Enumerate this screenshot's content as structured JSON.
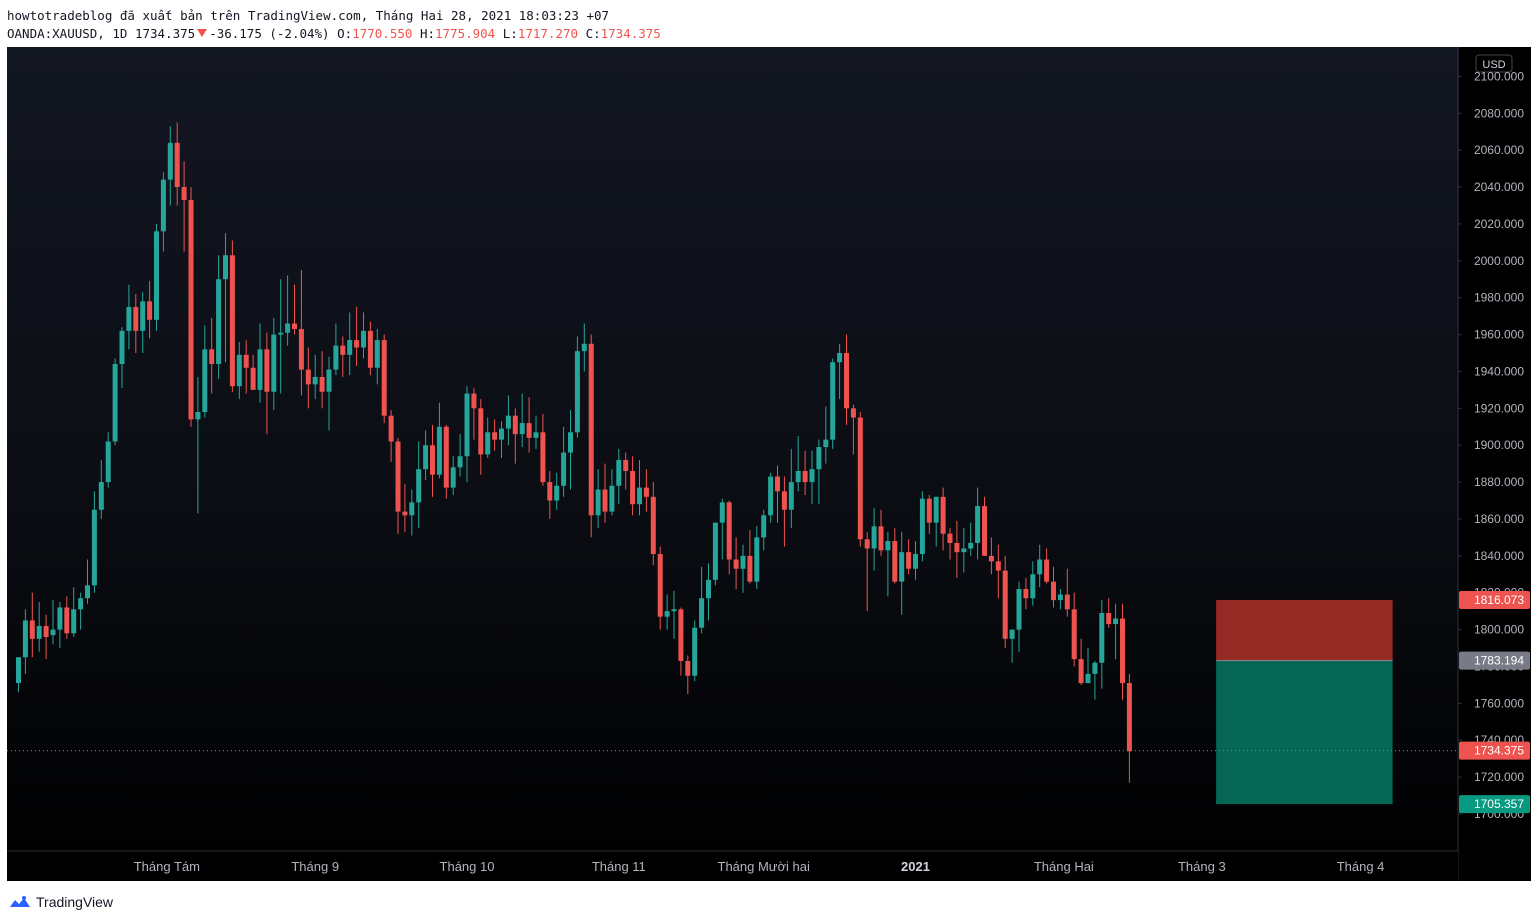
{
  "header": {
    "line1": "howtotradeblog đã xuất bản trên TradingView.com, Tháng Hai 28, 2021 18:03:23 +07",
    "symbol": "OANDA:XAUUSD, 1D",
    "last": "1734.375",
    "change": "-36.175 (-2.04%)",
    "o_label": "O:",
    "o_val": "1770.550",
    "h_label": "H:",
    "h_val": "1775.904",
    "l_label": "L:",
    "l_val": "1717.270",
    "c_label": "C:",
    "c_val": "1734.375"
  },
  "footer": {
    "brand": "TradingView"
  },
  "colors": {
    "up": "#26a69a",
    "down": "#ef5350",
    "background_top": "#131722",
    "background_bottom": "#000000",
    "stop_zone": "#952a25",
    "target_zone": "#056656",
    "last_price_tag": "#ef5350",
    "entry_tag": "#787b86",
    "target_tag": "#089981"
  },
  "chart_data": {
    "type": "candlestick",
    "symbol": "OANDA:XAUUSD",
    "interval": "1D",
    "currency": "USD",
    "ylim": [
      1690,
      2110
    ],
    "y_ticks": [
      "1700.000",
      "1720.000",
      "1740.000",
      "1760.000",
      "1780.000",
      "1800.000",
      "1820.000",
      "1840.000",
      "1860.000",
      "1880.000",
      "1900.000",
      "1920.000",
      "1940.000",
      "1960.000",
      "1980.000",
      "2000.000",
      "2020.000",
      "2040.000",
      "2060.000",
      "2080.000",
      "2100.000"
    ],
    "x_tick_labels": [
      "Tháng Tám",
      "Tháng 9",
      "Tháng 10",
      "Tháng 11",
      "Tháng Mười hai",
      "2021",
      "Tháng Hai",
      "Tháng 3",
      "Tháng 4"
    ],
    "x_tick_bold": [
      false,
      false,
      false,
      false,
      false,
      true,
      false,
      false,
      false
    ],
    "x_tick_bar_index": [
      21.5,
      43,
      65,
      87,
      108,
      130,
      151.5,
      171.5,
      194.5
    ],
    "ohlc": [
      [
        1771,
        1785,
        1766,
        1785
      ],
      [
        1785,
        1811,
        1776,
        1805
      ],
      [
        1805,
        1820,
        1785,
        1795
      ],
      [
        1795,
        1815,
        1788,
        1802
      ],
      [
        1802,
        1808,
        1784,
        1796
      ],
      [
        1797,
        1816,
        1792,
        1800
      ],
      [
        1800,
        1815,
        1790,
        1812
      ],
      [
        1812,
        1818,
        1795,
        1798
      ],
      [
        1798,
        1823,
        1796,
        1811
      ],
      [
        1811,
        1820,
        1800,
        1817
      ],
      [
        1817,
        1838,
        1814,
        1824
      ],
      [
        1824,
        1875,
        1820,
        1865
      ],
      [
        1865,
        1892,
        1860,
        1880
      ],
      [
        1880,
        1907,
        1877,
        1902
      ],
      [
        1902,
        1947,
        1900,
        1944
      ],
      [
        1944,
        1964,
        1931,
        1962
      ],
      [
        1962,
        1987,
        1952,
        1975
      ],
      [
        1975,
        1982,
        1950,
        1962
      ],
      [
        1962,
        1983,
        1950,
        1978
      ],
      [
        1978,
        1989,
        1958,
        1968
      ],
      [
        1968,
        2020,
        1962,
        2016
      ],
      [
        2016,
        2048,
        2005,
        2044
      ],
      [
        2044,
        2073,
        2030,
        2064
      ],
      [
        2064,
        2075,
        2030,
        2040
      ],
      [
        2040,
        2054,
        2005,
        2033
      ],
      [
        2033,
        2040,
        1910,
        1914
      ],
      [
        1914,
        1937,
        1863,
        1918
      ],
      [
        1918,
        1965,
        1915,
        1952
      ],
      [
        1952,
        1969,
        1928,
        1944
      ],
      [
        1944,
        2003,
        1936,
        1990
      ],
      [
        1990,
        2015,
        1945,
        2003
      ],
      [
        2003,
        2011,
        1929,
        1932
      ],
      [
        1932,
        1956,
        1925,
        1949
      ],
      [
        1949,
        1957,
        1928,
        1942
      ],
      [
        1942,
        1949,
        1930,
        1930
      ],
      [
        1930,
        1966,
        1923,
        1952
      ],
      [
        1952,
        1961,
        1906,
        1929
      ],
      [
        1929,
        1969,
        1919,
        1960
      ],
      [
        1960,
        1990,
        1928,
        1961
      ],
      [
        1961,
        1992,
        1954,
        1966
      ],
      [
        1966,
        1987,
        1960,
        1963
      ],
      [
        1963,
        1995,
        1927,
        1941
      ],
      [
        1941,
        1953,
        1920,
        1933
      ],
      [
        1933,
        1949,
        1925,
        1937
      ],
      [
        1937,
        1951,
        1920,
        1929
      ],
      [
        1929,
        1948,
        1908,
        1941
      ],
      [
        1941,
        1966,
        1938,
        1954
      ],
      [
        1954,
        1959,
        1937,
        1949
      ],
      [
        1949,
        1972,
        1938,
        1957
      ],
      [
        1957,
        1975,
        1943,
        1953
      ],
      [
        1953,
        1972,
        1947,
        1962
      ],
      [
        1962,
        1967,
        1938,
        1942
      ],
      [
        1942,
        1963,
        1933,
        1957
      ],
      [
        1957,
        1960,
        1912,
        1916
      ],
      [
        1916,
        1919,
        1891,
        1902
      ],
      [
        1902,
        1904,
        1852,
        1864
      ],
      [
        1864,
        1879,
        1853,
        1862
      ],
      [
        1862,
        1876,
        1851,
        1869
      ],
      [
        1869,
        1902,
        1855,
        1887
      ],
      [
        1887,
        1908,
        1881,
        1900
      ],
      [
        1900,
        1911,
        1872,
        1884
      ],
      [
        1884,
        1923,
        1882,
        1910
      ],
      [
        1910,
        1911,
        1871,
        1877
      ],
      [
        1877,
        1894,
        1873,
        1888
      ],
      [
        1888,
        1906,
        1883,
        1894
      ],
      [
        1894,
        1932,
        1880,
        1928
      ],
      [
        1928,
        1931,
        1903,
        1920
      ],
      [
        1920,
        1925,
        1884,
        1895
      ],
      [
        1895,
        1915,
        1893,
        1907
      ],
      [
        1907,
        1914,
        1897,
        1903
      ],
      [
        1903,
        1913,
        1893,
        1909
      ],
      [
        1909,
        1927,
        1900,
        1916
      ],
      [
        1916,
        1920,
        1890,
        1906
      ],
      [
        1906,
        1928,
        1899,
        1912
      ],
      [
        1912,
        1926,
        1896,
        1904
      ],
      [
        1904,
        1916,
        1898,
        1907
      ],
      [
        1907,
        1917,
        1878,
        1880
      ],
      [
        1880,
        1886,
        1860,
        1870
      ],
      [
        1870,
        1885,
        1865,
        1878
      ],
      [
        1878,
        1910,
        1872,
        1896
      ],
      [
        1896,
        1919,
        1876,
        1907
      ],
      [
        1907,
        1959,
        1904,
        1951
      ],
      [
        1951,
        1966,
        1940,
        1955
      ],
      [
        1955,
        1960,
        1850,
        1862
      ],
      [
        1862,
        1887,
        1855,
        1876
      ],
      [
        1876,
        1890,
        1858,
        1864
      ],
      [
        1864,
        1887,
        1862,
        1878
      ],
      [
        1878,
        1898,
        1868,
        1892
      ],
      [
        1892,
        1896,
        1876,
        1886
      ],
      [
        1886,
        1894,
        1862,
        1868
      ],
      [
        1868,
        1892,
        1862,
        1877
      ],
      [
        1877,
        1887,
        1864,
        1872
      ],
      [
        1872,
        1880,
        1835,
        1841
      ],
      [
        1841,
        1845,
        1800,
        1807
      ],
      [
        1807,
        1819,
        1800,
        1810
      ],
      [
        1810,
        1821,
        1795,
        1811
      ],
      [
        1811,
        1812,
        1775,
        1783
      ],
      [
        1783,
        1786,
        1765,
        1775
      ],
      [
        1775,
        1805,
        1772,
        1801
      ],
      [
        1801,
        1834,
        1798,
        1817
      ],
      [
        1817,
        1836,
        1805,
        1827
      ],
      [
        1827,
        1857,
        1824,
        1858
      ],
      [
        1858,
        1871,
        1838,
        1869
      ],
      [
        1869,
        1870,
        1830,
        1838
      ],
      [
        1838,
        1850,
        1822,
        1833
      ],
      [
        1833,
        1846,
        1820,
        1840
      ],
      [
        1840,
        1854,
        1825,
        1826
      ],
      [
        1826,
        1856,
        1822,
        1850
      ],
      [
        1850,
        1865,
        1843,
        1862
      ],
      [
        1862,
        1885,
        1858,
        1883
      ],
      [
        1883,
        1889,
        1858,
        1875
      ],
      [
        1875,
        1883,
        1845,
        1865
      ],
      [
        1865,
        1898,
        1855,
        1880
      ],
      [
        1880,
        1905,
        1875,
        1886
      ],
      [
        1886,
        1897,
        1873,
        1880
      ],
      [
        1880,
        1897,
        1868,
        1887
      ],
      [
        1887,
        1903,
        1868,
        1899
      ],
      [
        1899,
        1921,
        1890,
        1903
      ],
      [
        1903,
        1947,
        1898,
        1945
      ],
      [
        1945,
        1955,
        1925,
        1950
      ],
      [
        1950,
        1960,
        1911,
        1920
      ],
      [
        1920,
        1922,
        1895,
        1915
      ],
      [
        1915,
        1918,
        1845,
        1849
      ],
      [
        1849,
        1853,
        1810,
        1844
      ],
      [
        1844,
        1866,
        1832,
        1856
      ],
      [
        1856,
        1865,
        1840,
        1843
      ],
      [
        1843,
        1853,
        1818,
        1848
      ],
      [
        1848,
        1855,
        1825,
        1826
      ],
      [
        1826,
        1853,
        1808,
        1842
      ],
      [
        1842,
        1849,
        1830,
        1833
      ],
      [
        1833,
        1848,
        1827,
        1841
      ],
      [
        1841,
        1875,
        1837,
        1871
      ],
      [
        1871,
        1873,
        1852,
        1858
      ],
      [
        1858,
        1872,
        1845,
        1872
      ],
      [
        1872,
        1877,
        1843,
        1852
      ],
      [
        1852,
        1855,
        1838,
        1847
      ],
      [
        1847,
        1859,
        1828,
        1842
      ],
      [
        1842,
        1855,
        1831,
        1844
      ],
      [
        1844,
        1858,
        1840,
        1847
      ],
      [
        1847,
        1877,
        1838,
        1867
      ],
      [
        1867,
        1872,
        1840,
        1840
      ],
      [
        1840,
        1850,
        1830,
        1837
      ],
      [
        1837,
        1846,
        1817,
        1832
      ],
      [
        1832,
        1840,
        1790,
        1795
      ],
      [
        1795,
        1800,
        1782,
        1800
      ],
      [
        1800,
        1826,
        1788,
        1822
      ],
      [
        1822,
        1828,
        1811,
        1817
      ],
      [
        1817,
        1837,
        1813,
        1830
      ],
      [
        1830,
        1846,
        1823,
        1838
      ],
      [
        1838,
        1844,
        1825,
        1826
      ],
      [
        1826,
        1834,
        1812,
        1816
      ],
      [
        1816,
        1822,
        1811,
        1819
      ],
      [
        1819,
        1833,
        1807,
        1811
      ],
      [
        1811,
        1820,
        1780,
        1784
      ],
      [
        1784,
        1795,
        1770,
        1771
      ],
      [
        1771,
        1790,
        1771,
        1776
      ],
      [
        1776,
        1783,
        1762,
        1782
      ],
      [
        1782,
        1816,
        1768,
        1809
      ],
      [
        1809,
        1817,
        1801,
        1803
      ],
      [
        1803,
        1814,
        1784,
        1806
      ],
      [
        1806,
        1814,
        1762,
        1771
      ],
      [
        1771,
        1776,
        1717,
        1734
      ]
    ],
    "horizontal_lines": [
      {
        "label": "1734.375",
        "value": 1734.375,
        "style": "dotted"
      }
    ],
    "price_tags": [
      {
        "label": "1816.073",
        "value": 1816.073,
        "color": "#ef5350"
      },
      {
        "label": "1783.194",
        "value": 1783.194,
        "color": "#787b86"
      },
      {
        "label": "1734.375",
        "value": 1734.375,
        "color": "#ef5350"
      },
      {
        "label": "1705.357",
        "value": 1705.357,
        "color": "#089981"
      }
    ],
    "position": {
      "type": "short",
      "entry": 1783.194,
      "stop": 1816.073,
      "target": 1705.357,
      "bar_from": 174,
      "bar_to": 199
    }
  }
}
